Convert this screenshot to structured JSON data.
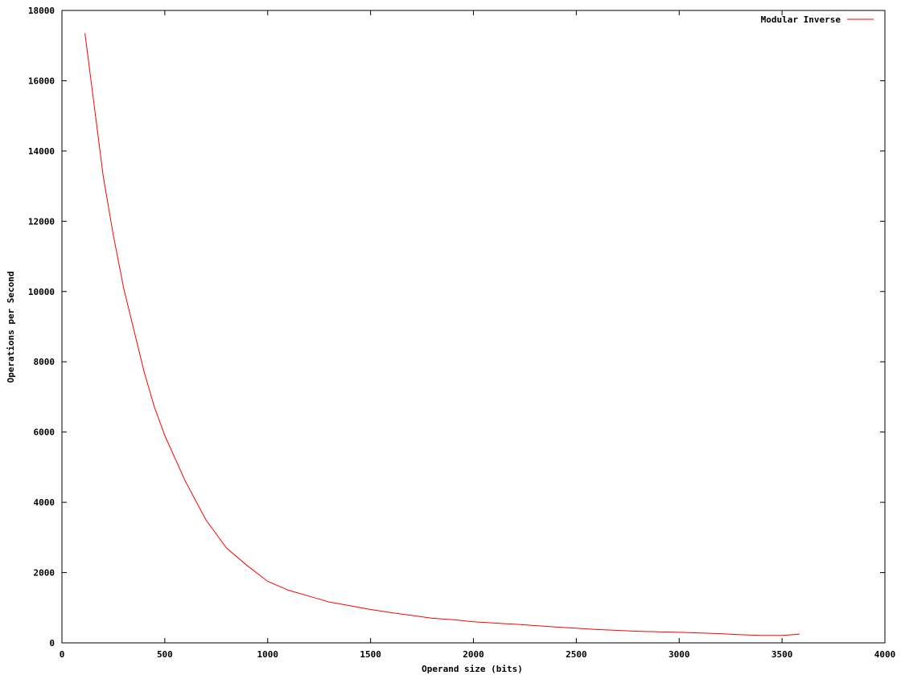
{
  "chart_data": {
    "type": "line",
    "title": "",
    "xlabel": "Operand size (bits)",
    "ylabel": "Operations per Second",
    "xlim": [
      0,
      4000
    ],
    "ylim": [
      0,
      18000
    ],
    "xticks": [
      "0",
      "500",
      "1000",
      "1500",
      "2000",
      "2500",
      "3000",
      "3500",
      "4000"
    ],
    "yticks": [
      "0",
      "2000",
      "4000",
      "6000",
      "8000",
      "10000",
      "12000",
      "14000",
      "16000",
      "18000"
    ],
    "grid": false,
    "legend_position": "top-right",
    "series": [
      {
        "name": "Modular Inverse",
        "color": "#ff0000",
        "x": [
          112,
          150,
          200,
          250,
          300,
          350,
          400,
          450,
          500,
          600,
          700,
          800,
          900,
          1000,
          1100,
          1200,
          1300,
          1400,
          1500,
          1600,
          1700,
          1800,
          1900,
          2000,
          2200,
          2400,
          2600,
          2800,
          3000,
          3200,
          3300,
          3400,
          3500,
          3550,
          3586
        ],
        "y": [
          17350,
          15600,
          13300,
          11600,
          10100,
          8900,
          7700,
          6700,
          5900,
          4600,
          3500,
          2700,
          2200,
          1750,
          1500,
          1330,
          1160,
          1060,
          950,
          860,
          780,
          700,
          660,
          600,
          530,
          450,
          380,
          330,
          300,
          260,
          230,
          210,
          210,
          230,
          250
        ]
      }
    ]
  }
}
